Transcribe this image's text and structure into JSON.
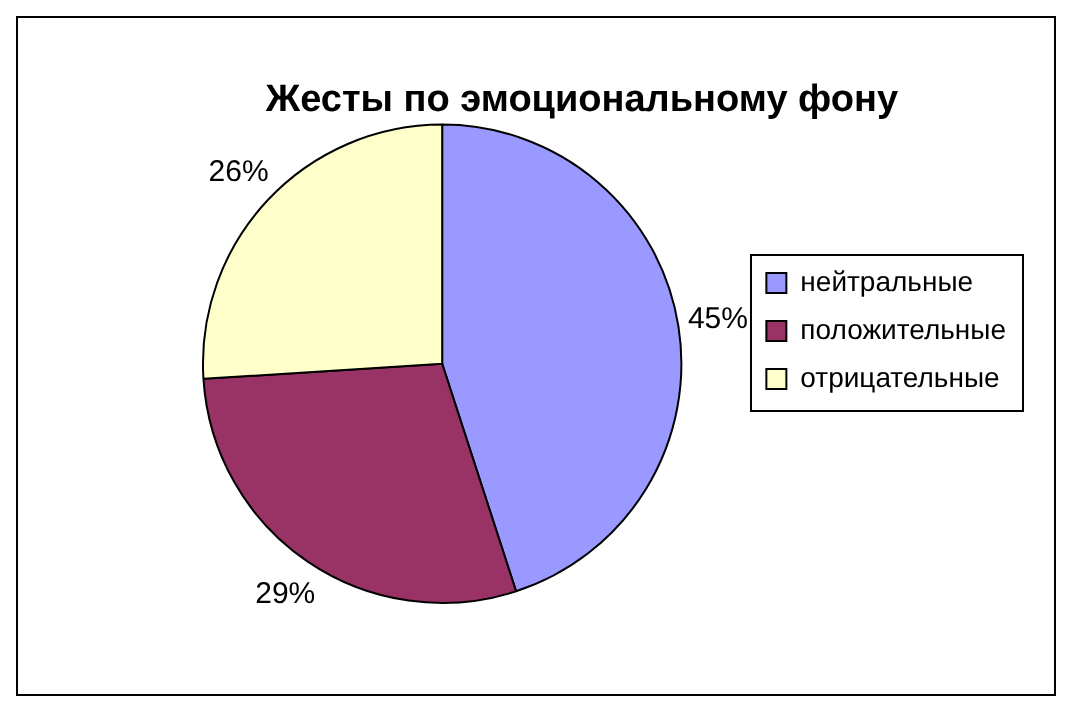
{
  "chart_data": {
    "type": "pie",
    "title": "Жесты по эмоциональному фону",
    "categories": [
      "нейтральные",
      "положительные",
      "отрицательные"
    ],
    "values": [
      45,
      29,
      26
    ],
    "colors": [
      "#9999ff",
      "#993366",
      "#ffffcc"
    ],
    "value_labels": [
      "45%",
      "29%",
      "26%"
    ],
    "legend": "right"
  }
}
